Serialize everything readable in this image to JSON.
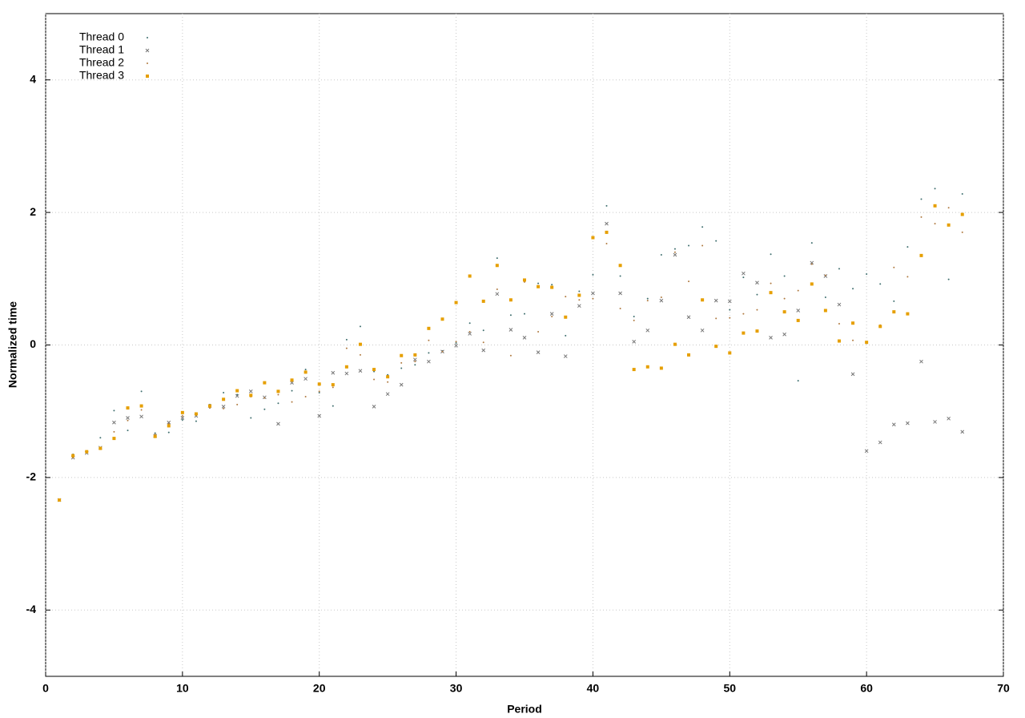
{
  "chart_data": {
    "type": "scatter",
    "xlabel": "Period",
    "ylabel": "Normalized time",
    "xlim": [
      0,
      70
    ],
    "ylim": [
      -5,
      5
    ],
    "xticks": [
      0,
      10,
      20,
      30,
      40,
      50,
      60,
      70
    ],
    "yticks": [
      -4,
      -2,
      0,
      2,
      4
    ],
    "grid": true,
    "legend": "top-left",
    "x": [
      1,
      2,
      3,
      4,
      5,
      6,
      7,
      8,
      9,
      10,
      11,
      12,
      13,
      14,
      15,
      16,
      17,
      18,
      19,
      20,
      21,
      22,
      23,
      24,
      25,
      26,
      27,
      28,
      29,
      30,
      31,
      32,
      33,
      34,
      35,
      36,
      37,
      38,
      39,
      40,
      41,
      42,
      43,
      44,
      45,
      46,
      47,
      48,
      49,
      50,
      51,
      52,
      53,
      54,
      55,
      56,
      57,
      58,
      59,
      60,
      61,
      62,
      63,
      64,
      65,
      66,
      67
    ],
    "series": [
      {
        "name": "Thread 0",
        "color": "#3f6f6f",
        "marker": "dot",
        "values": [
          -2.34,
          -1.65,
          -1.6,
          -1.4,
          -0.99,
          -1.29,
          -0.7,
          -1.33,
          -1.32,
          -1.13,
          -1.15,
          -0.9,
          -0.72,
          -0.75,
          -1.1,
          -0.97,
          -0.88,
          -0.69,
          -0.37,
          -0.72,
          -0.92,
          0.08,
          0.28,
          -0.4,
          -0.45,
          -0.35,
          -0.3,
          -0.12,
          -0.09,
          0.03,
          0.33,
          0.22,
          1.31,
          0.45,
          0.47,
          0.93,
          0.91,
          0.14,
          0.81,
          1.06,
          2.1,
          1.04,
          0.43,
          0.7,
          1.36,
          1.45,
          1.5,
          1.78,
          1.57,
          0.53,
          1.02,
          0.76,
          1.37,
          1.04,
          -0.54,
          1.54,
          0.72,
          1.15,
          0.85,
          1.07,
          0.92,
          0.66,
          1.48,
          2.2,
          2.36,
          0.99,
          2.28
        ]
      },
      {
        "name": "Thread 1",
        "color": "#777777",
        "marker": "x",
        "values": [
          -2.34,
          -1.7,
          -1.63,
          -1.55,
          -1.17,
          -1.1,
          -1.08,
          -1.37,
          -1.17,
          -1.1,
          -1.07,
          -0.92,
          -0.93,
          -0.77,
          -0.7,
          -0.79,
          -1.19,
          -0.57,
          -0.51,
          -1.07,
          -0.42,
          -0.43,
          -0.39,
          -0.93,
          -0.74,
          -0.6,
          -0.22,
          -0.25,
          -0.1,
          -0.01,
          0.17,
          -0.08,
          0.77,
          0.23,
          0.11,
          -0.11,
          0.47,
          -0.17,
          0.59,
          0.78,
          1.83,
          0.78,
          0.05,
          0.22,
          0.67,
          1.36,
          0.42,
          0.22,
          0.67,
          0.66,
          1.08,
          0.94,
          0.11,
          0.16,
          0.52,
          1.24,
          1.04,
          0.61,
          -0.44,
          -1.6,
          -1.47,
          -1.2,
          -1.18,
          -0.25,
          -1.16,
          -1.11,
          -1.31
        ]
      },
      {
        "name": "Thread 2",
        "color": "#b07a40",
        "marker": "dot",
        "values": [
          -2.34,
          -1.7,
          -1.62,
          -1.57,
          -1.31,
          -1.14,
          -0.98,
          -1.35,
          -1.19,
          -1.07,
          -1.04,
          -0.95,
          -0.96,
          -0.9,
          -0.78,
          -0.8,
          -0.75,
          -0.86,
          -0.78,
          -0.7,
          -0.64,
          -0.05,
          -0.15,
          -0.52,
          -0.56,
          -0.27,
          -0.25,
          0.07,
          -0.1,
          0.05,
          0.2,
          0.04,
          0.84,
          -0.16,
          0.95,
          0.2,
          0.43,
          0.73,
          0.68,
          0.7,
          1.53,
          0.55,
          0.37,
          0.67,
          0.72,
          1.4,
          0.96,
          1.5,
          0.4,
          0.41,
          0.47,
          0.53,
          0.93,
          0.7,
          0.82,
          1.22,
          1.05,
          0.32,
          0.07,
          0.03,
          0.3,
          1.17,
          1.03,
          1.93,
          1.83,
          2.07,
          1.7
        ]
      },
      {
        "name": "Thread 3",
        "color": "#e69f00",
        "marker": "square",
        "values": [
          -2.34,
          -1.67,
          -1.61,
          -1.56,
          -1.41,
          -0.95,
          -0.92,
          -1.38,
          -1.22,
          -1.02,
          -1.04,
          -0.92,
          -0.82,
          -0.69,
          -0.76,
          -0.57,
          -0.7,
          -0.53,
          -0.41,
          -0.59,
          -0.6,
          -0.33,
          0.01,
          -0.37,
          -0.48,
          -0.16,
          -0.15,
          0.25,
          0.39,
          0.64,
          1.04,
          0.66,
          1.2,
          0.68,
          0.98,
          0.88,
          0.87,
          0.42,
          0.75,
          1.62,
          1.7,
          1.2,
          -0.37,
          -0.33,
          -0.35,
          0.01,
          -0.15,
          0.68,
          -0.02,
          -0.12,
          0.18,
          0.21,
          0.79,
          0.5,
          0.37,
          0.92,
          0.52,
          0.06,
          0.33,
          0.04,
          0.28,
          0.5,
          0.47,
          1.35,
          2.1,
          1.81,
          1.97
        ]
      }
    ]
  }
}
